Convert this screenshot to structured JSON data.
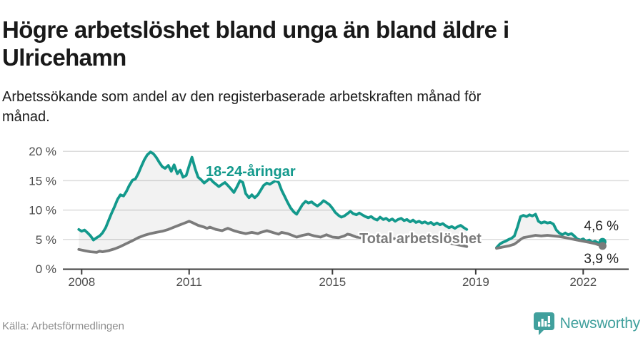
{
  "header": {
    "title_line1": "Högre arbetslöshet bland unga än bland äldre i",
    "title_line2": "Ulricehamn",
    "subtitle_line1": "Arbetssökande som andel av den registerbaserade arbetskraften månad för",
    "subtitle_line2": "månad."
  },
  "footer": {
    "source": "Källa: Arbetsförmedlingen",
    "brand": "Newsworthy"
  },
  "colors": {
    "young": "#13998c",
    "total": "#7b7b7b",
    "brand": "#41a09d",
    "grid": "#dcdcdc",
    "axis": "#3b3b3b"
  },
  "chart_data": {
    "type": "line",
    "title": "Högre arbetslöshet bland unga än bland äldre i Ulricehamn",
    "ylabel": "",
    "xlabel": "",
    "unit": "%",
    "ylim": [
      0,
      20
    ],
    "yticks": [
      0,
      5,
      10,
      15,
      20
    ],
    "ytick_labels": [
      "0 %",
      "5 %",
      "10 %",
      "15 %",
      "20 %"
    ],
    "xticks": [
      2008,
      2011,
      2015,
      2019,
      2022
    ],
    "xtick_labels": [
      "2008",
      "2011",
      "2015",
      "2019",
      "2022"
    ],
    "xlim": [
      2007.6,
      2023.0
    ],
    "grid": "horizontal",
    "note": "gap in both series between 2018.75 and 2019.58",
    "series": [
      {
        "name": "18-24-åringar",
        "color": "#13998c",
        "end_label": "4,6 %",
        "end_value": 4.6,
        "segments": [
          [
            [
              2007.92,
              6.7
            ],
            [
              2008.0,
              6.4
            ],
            [
              2008.08,
              6.6
            ],
            [
              2008.17,
              6.1
            ],
            [
              2008.25,
              5.6
            ],
            [
              2008.33,
              4.9
            ],
            [
              2008.42,
              5.3
            ],
            [
              2008.5,
              5.6
            ],
            [
              2008.58,
              6.1
            ],
            [
              2008.67,
              7.0
            ],
            [
              2008.75,
              8.2
            ],
            [
              2008.83,
              9.4
            ],
            [
              2008.92,
              10.6
            ],
            [
              2009.0,
              11.8
            ],
            [
              2009.08,
              12.6
            ],
            [
              2009.17,
              12.4
            ],
            [
              2009.25,
              13.2
            ],
            [
              2009.33,
              14.2
            ],
            [
              2009.42,
              15.1
            ],
            [
              2009.5,
              15.3
            ],
            [
              2009.58,
              16.2
            ],
            [
              2009.67,
              17.5
            ],
            [
              2009.75,
              18.6
            ],
            [
              2009.83,
              19.4
            ],
            [
              2009.92,
              19.9
            ],
            [
              2010.0,
              19.6
            ],
            [
              2010.08,
              19.0
            ],
            [
              2010.17,
              18.1
            ],
            [
              2010.25,
              17.4
            ],
            [
              2010.33,
              17.1
            ],
            [
              2010.42,
              17.6
            ],
            [
              2010.5,
              16.6
            ],
            [
              2010.58,
              17.7
            ],
            [
              2010.67,
              16.2
            ],
            [
              2010.75,
              16.8
            ],
            [
              2010.83,
              15.6
            ],
            [
              2010.92,
              15.9
            ],
            [
              2011.0,
              17.5
            ],
            [
              2011.08,
              19.0
            ],
            [
              2011.17,
              17.0
            ],
            [
              2011.25,
              15.6
            ],
            [
              2011.33,
              15.2
            ],
            [
              2011.42,
              14.6
            ],
            [
              2011.5,
              15.0
            ],
            [
              2011.58,
              15.4
            ],
            [
              2011.67,
              14.8
            ],
            [
              2011.75,
              14.4
            ],
            [
              2011.83,
              14.0
            ],
            [
              2011.92,
              14.4
            ],
            [
              2012.0,
              14.7
            ],
            [
              2012.08,
              14.2
            ],
            [
              2012.17,
              13.6
            ],
            [
              2012.25,
              13.0
            ],
            [
              2012.33,
              13.9
            ],
            [
              2012.42,
              15.0
            ],
            [
              2012.5,
              14.7
            ],
            [
              2012.58,
              12.8
            ],
            [
              2012.67,
              12.1
            ],
            [
              2012.75,
              12.6
            ],
            [
              2012.83,
              12.1
            ],
            [
              2012.92,
              12.6
            ],
            [
              2013.0,
              13.4
            ],
            [
              2013.08,
              14.2
            ],
            [
              2013.17,
              14.6
            ],
            [
              2013.25,
              14.4
            ],
            [
              2013.33,
              14.7
            ],
            [
              2013.42,
              15.0
            ],
            [
              2013.5,
              14.7
            ],
            [
              2013.58,
              13.4
            ],
            [
              2013.67,
              12.3
            ],
            [
              2013.75,
              11.3
            ],
            [
              2013.83,
              10.4
            ],
            [
              2013.92,
              9.7
            ],
            [
              2014.0,
              9.3
            ],
            [
              2014.08,
              10.1
            ],
            [
              2014.17,
              11.0
            ],
            [
              2014.25,
              11.5
            ],
            [
              2014.33,
              11.2
            ],
            [
              2014.42,
              11.4
            ],
            [
              2014.5,
              11.0
            ],
            [
              2014.58,
              10.7
            ],
            [
              2014.67,
              11.1
            ],
            [
              2014.75,
              11.6
            ],
            [
              2014.83,
              11.3
            ],
            [
              2014.92,
              10.9
            ],
            [
              2015.0,
              10.3
            ],
            [
              2015.08,
              9.6
            ],
            [
              2015.17,
              9.1
            ],
            [
              2015.25,
              8.8
            ],
            [
              2015.33,
              9.0
            ],
            [
              2015.42,
              9.4
            ],
            [
              2015.5,
              9.8
            ],
            [
              2015.58,
              9.4
            ],
            [
              2015.67,
              9.2
            ],
            [
              2015.75,
              9.5
            ],
            [
              2015.83,
              9.2
            ],
            [
              2015.92,
              8.9
            ],
            [
              2016.0,
              8.7
            ],
            [
              2016.08,
              8.9
            ],
            [
              2016.17,
              8.5
            ],
            [
              2016.25,
              8.3
            ],
            [
              2016.33,
              8.8
            ],
            [
              2016.42,
              8.4
            ],
            [
              2016.5,
              8.6
            ],
            [
              2016.58,
              8.2
            ],
            [
              2016.67,
              8.5
            ],
            [
              2016.75,
              8.1
            ],
            [
              2016.83,
              8.4
            ],
            [
              2016.92,
              8.6
            ],
            [
              2017.0,
              8.2
            ],
            [
              2017.08,
              8.4
            ],
            [
              2017.17,
              8.0
            ],
            [
              2017.25,
              8.3
            ],
            [
              2017.33,
              7.9
            ],
            [
              2017.42,
              8.1
            ],
            [
              2017.5,
              7.8
            ],
            [
              2017.58,
              8.0
            ],
            [
              2017.67,
              7.7
            ],
            [
              2017.75,
              7.9
            ],
            [
              2017.83,
              7.5
            ],
            [
              2017.92,
              7.8
            ],
            [
              2018.0,
              7.5
            ],
            [
              2018.08,
              7.7
            ],
            [
              2018.17,
              7.3
            ],
            [
              2018.25,
              7.0
            ],
            [
              2018.33,
              7.2
            ],
            [
              2018.42,
              6.9
            ],
            [
              2018.5,
              7.2
            ],
            [
              2018.58,
              7.4
            ],
            [
              2018.67,
              7.0
            ],
            [
              2018.75,
              6.7
            ]
          ],
          [
            [
              2019.58,
              3.6
            ],
            [
              2019.67,
              4.2
            ],
            [
              2019.75,
              4.5
            ],
            [
              2019.83,
              4.7
            ],
            [
              2019.92,
              5.0
            ],
            [
              2020.0,
              5.2
            ],
            [
              2020.08,
              5.6
            ],
            [
              2020.17,
              7.2
            ],
            [
              2020.25,
              8.9
            ],
            [
              2020.33,
              9.1
            ],
            [
              2020.42,
              8.9
            ],
            [
              2020.5,
              9.2
            ],
            [
              2020.58,
              9.0
            ],
            [
              2020.67,
              9.3
            ],
            [
              2020.75,
              8.1
            ],
            [
              2020.83,
              7.8
            ],
            [
              2020.92,
              8.0
            ],
            [
              2021.0,
              7.8
            ],
            [
              2021.08,
              7.9
            ],
            [
              2021.17,
              7.6
            ],
            [
              2021.25,
              6.6
            ],
            [
              2021.33,
              6.1
            ],
            [
              2021.42,
              5.8
            ],
            [
              2021.5,
              6.1
            ],
            [
              2021.58,
              5.8
            ],
            [
              2021.67,
              6.0
            ],
            [
              2021.75,
              5.6
            ],
            [
              2021.83,
              5.1
            ],
            [
              2021.92,
              4.9
            ],
            [
              2022.0,
              5.1
            ],
            [
              2022.08,
              4.7
            ],
            [
              2022.17,
              4.9
            ],
            [
              2022.25,
              4.5
            ],
            [
              2022.33,
              4.7
            ],
            [
              2022.42,
              4.4
            ],
            [
              2022.54,
              4.6
            ]
          ]
        ]
      },
      {
        "name": "Total arbetslöshet",
        "color": "#7b7b7b",
        "end_label": "3,9 %",
        "end_value": 3.9,
        "segments": [
          [
            [
              2007.92,
              3.3
            ],
            [
              2008.08,
              3.1
            ],
            [
              2008.25,
              2.9
            ],
            [
              2008.42,
              2.8
            ],
            [
              2008.5,
              3.0
            ],
            [
              2008.58,
              2.9
            ],
            [
              2008.75,
              3.1
            ],
            [
              2008.92,
              3.4
            ],
            [
              2009.08,
              3.8
            ],
            [
              2009.25,
              4.3
            ],
            [
              2009.42,
              4.8
            ],
            [
              2009.58,
              5.3
            ],
            [
              2009.75,
              5.7
            ],
            [
              2009.92,
              6.0
            ],
            [
              2010.08,
              6.2
            ],
            [
              2010.25,
              6.4
            ],
            [
              2010.42,
              6.7
            ],
            [
              2010.58,
              7.1
            ],
            [
              2010.75,
              7.5
            ],
            [
              2010.92,
              7.9
            ],
            [
              2011.0,
              8.1
            ],
            [
              2011.08,
              7.9
            ],
            [
              2011.25,
              7.4
            ],
            [
              2011.42,
              7.1
            ],
            [
              2011.5,
              6.9
            ],
            [
              2011.58,
              7.1
            ],
            [
              2011.75,
              6.7
            ],
            [
              2011.92,
              6.5
            ],
            [
              2012.0,
              6.7
            ],
            [
              2012.08,
              6.9
            ],
            [
              2012.25,
              6.5
            ],
            [
              2012.42,
              6.2
            ],
            [
              2012.58,
              6.0
            ],
            [
              2012.75,
              6.2
            ],
            [
              2012.92,
              6.0
            ],
            [
              2013.0,
              6.2
            ],
            [
              2013.17,
              6.5
            ],
            [
              2013.33,
              6.2
            ],
            [
              2013.5,
              5.9
            ],
            [
              2013.58,
              6.2
            ],
            [
              2013.75,
              6.0
            ],
            [
              2013.92,
              5.6
            ],
            [
              2014.0,
              5.4
            ],
            [
              2014.17,
              5.7
            ],
            [
              2014.33,
              5.9
            ],
            [
              2014.5,
              5.6
            ],
            [
              2014.67,
              5.4
            ],
            [
              2014.83,
              5.8
            ],
            [
              2015.0,
              5.4
            ],
            [
              2015.17,
              5.3
            ],
            [
              2015.33,
              5.6
            ],
            [
              2015.42,
              5.9
            ],
            [
              2015.5,
              5.8
            ],
            [
              2015.67,
              5.4
            ],
            [
              2015.83,
              5.3
            ],
            [
              2016.0,
              5.2
            ],
            [
              2016.17,
              5.3
            ],
            [
              2016.33,
              5.2
            ],
            [
              2016.5,
              5.3
            ],
            [
              2016.67,
              5.1
            ],
            [
              2016.83,
              5.2
            ],
            [
              2017.0,
              5.1
            ],
            [
              2017.17,
              5.2
            ],
            [
              2017.33,
              5.0
            ],
            [
              2017.5,
              5.1
            ],
            [
              2017.67,
              4.9
            ],
            [
              2017.83,
              5.0
            ],
            [
              2018.0,
              4.8
            ],
            [
              2018.17,
              4.6
            ],
            [
              2018.33,
              4.3
            ],
            [
              2018.5,
              4.1
            ],
            [
              2018.67,
              3.9
            ],
            [
              2018.75,
              3.8
            ]
          ],
          [
            [
              2019.58,
              3.5
            ],
            [
              2019.75,
              3.7
            ],
            [
              2019.92,
              3.9
            ],
            [
              2020.08,
              4.2
            ],
            [
              2020.17,
              4.6
            ],
            [
              2020.25,
              5.0
            ],
            [
              2020.33,
              5.3
            ],
            [
              2020.5,
              5.5
            ],
            [
              2020.67,
              5.7
            ],
            [
              2020.83,
              5.6
            ],
            [
              2021.0,
              5.7
            ],
            [
              2021.17,
              5.6
            ],
            [
              2021.33,
              5.5
            ],
            [
              2021.5,
              5.3
            ],
            [
              2021.67,
              5.1
            ],
            [
              2021.83,
              4.9
            ],
            [
              2022.0,
              4.7
            ],
            [
              2022.17,
              4.5
            ],
            [
              2022.33,
              4.3
            ],
            [
              2022.42,
              4.1
            ],
            [
              2022.54,
              3.9
            ]
          ]
        ]
      }
    ],
    "legend_position": "inline-labels"
  }
}
